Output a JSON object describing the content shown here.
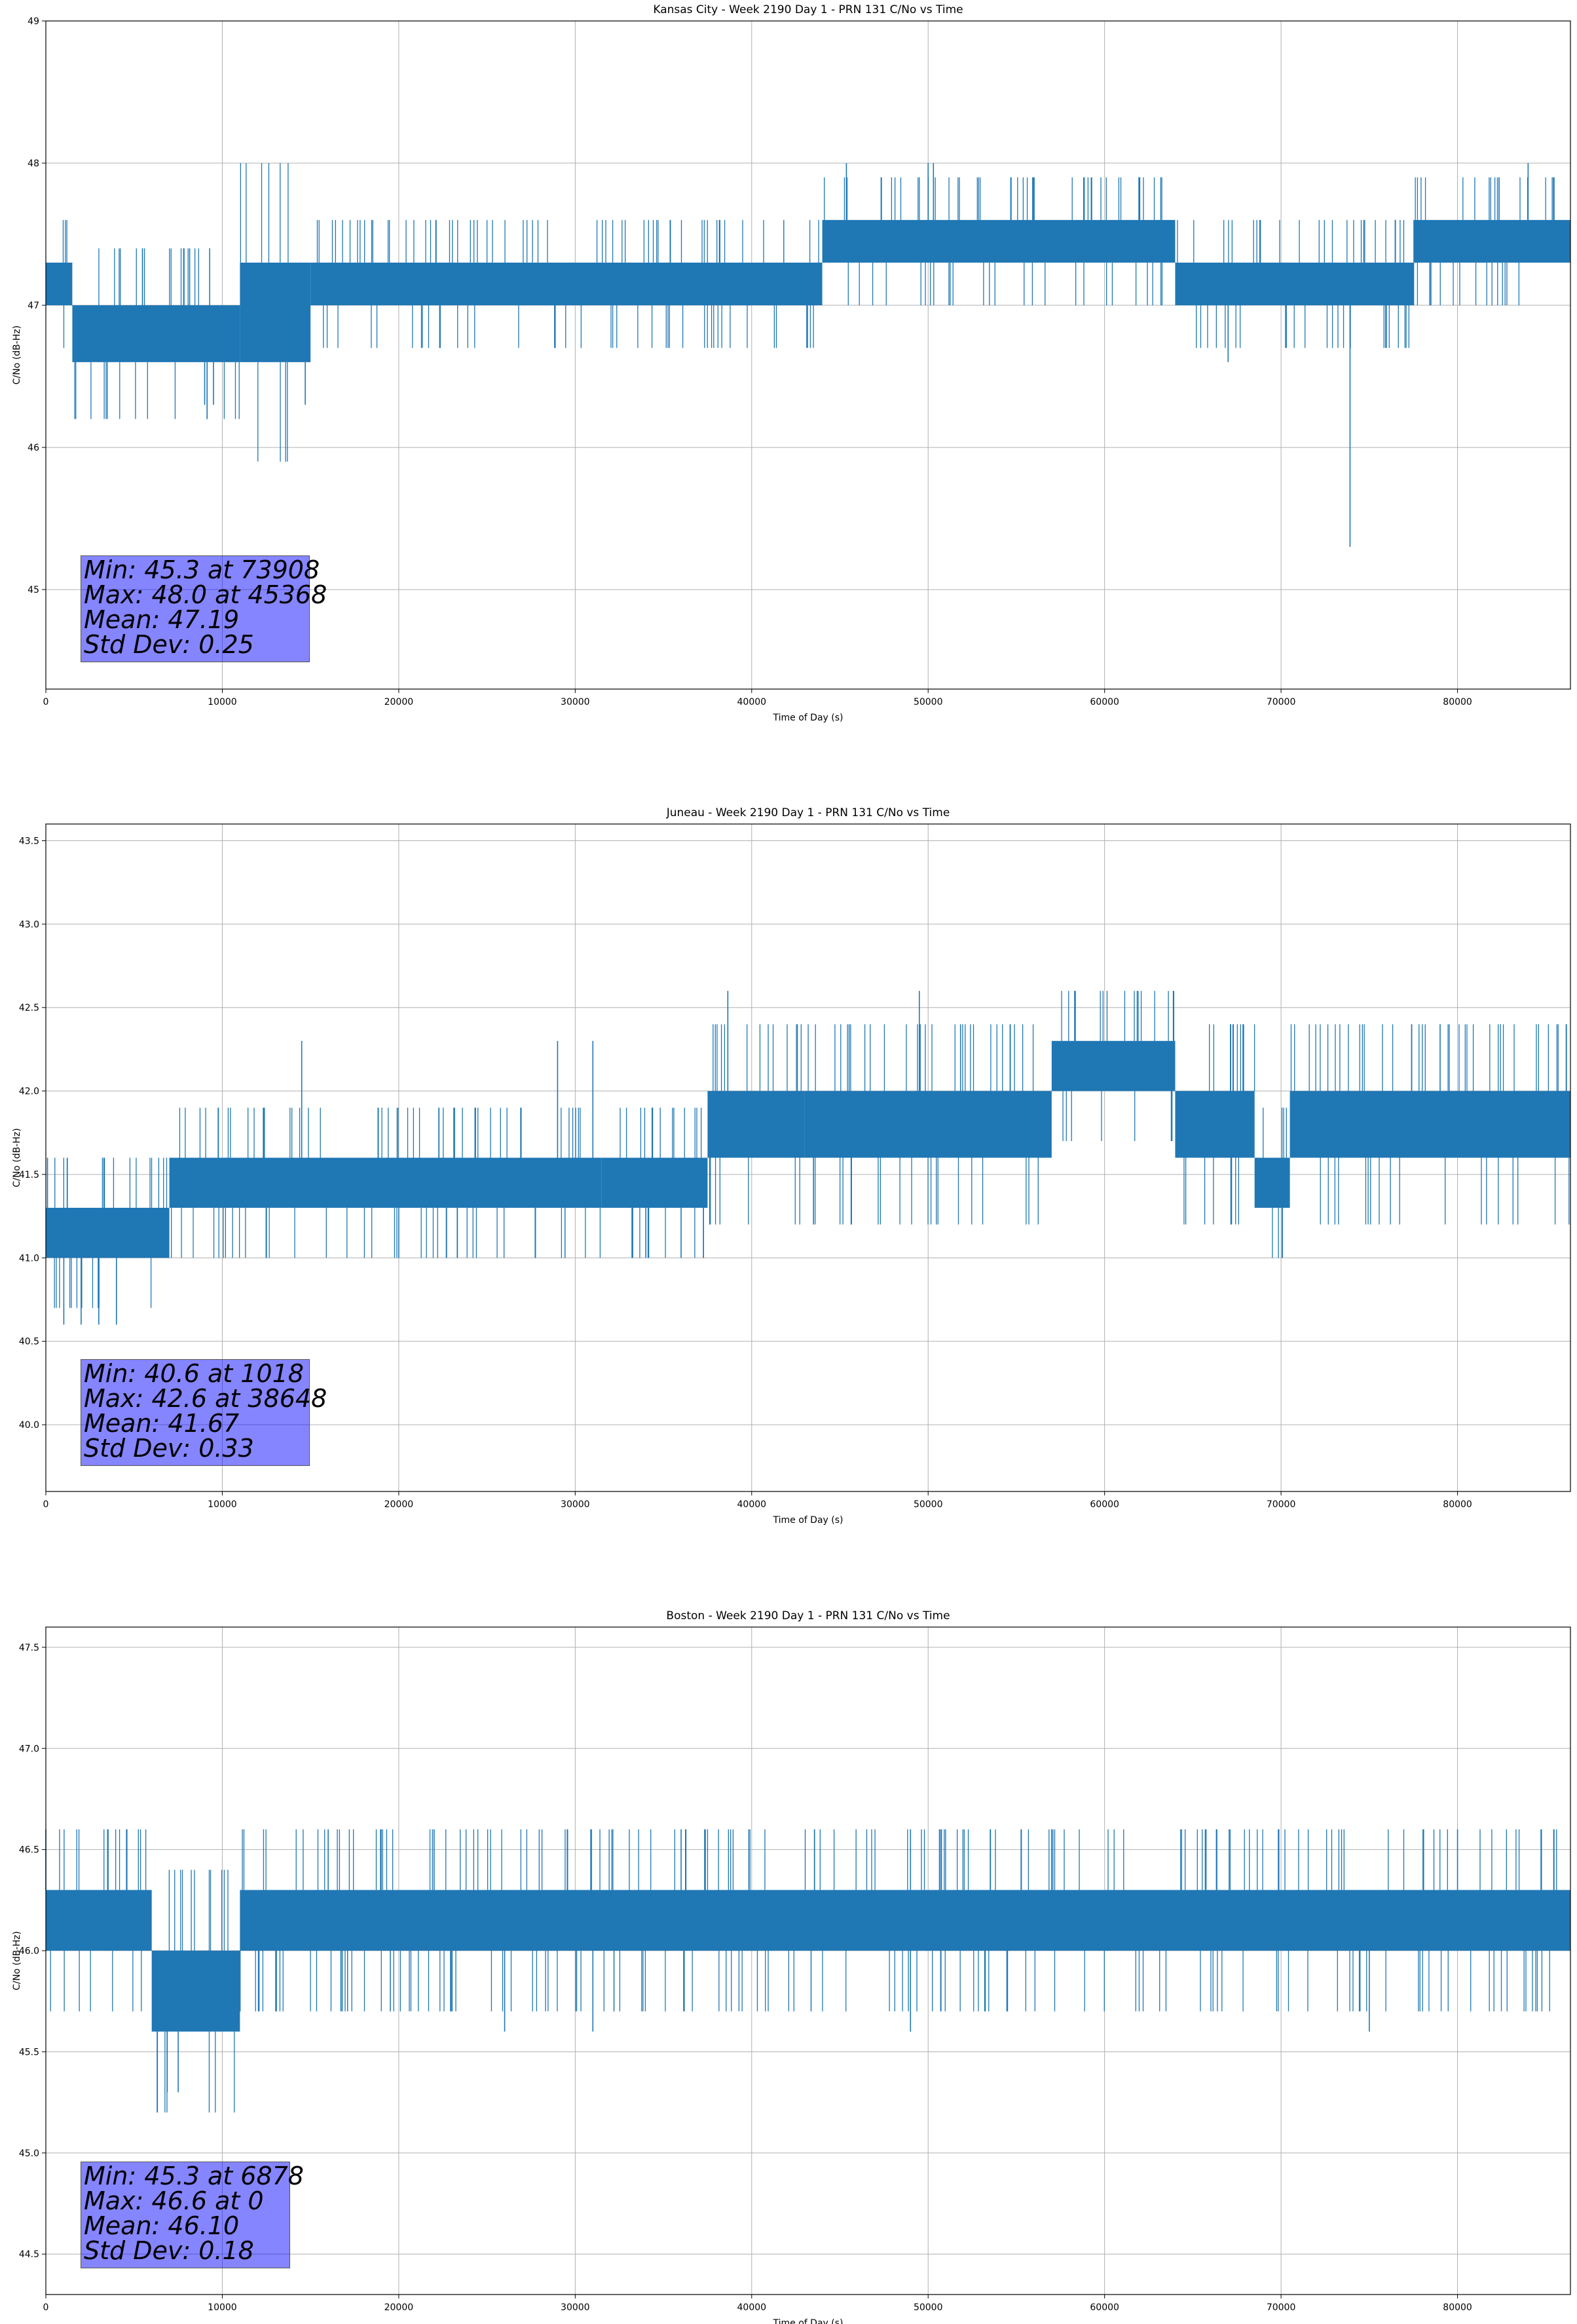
{
  "chart_data": [
    {
      "type": "line",
      "title": "Kansas City - Week 2190 Day 1 - PRN 131 C/No vs Time",
      "xlabel": "Time of Day (s)",
      "ylabel": "C/No (dB-Hz)",
      "xlim": [
        0,
        86400
      ],
      "ylim": [
        44.3,
        49.0
      ],
      "xticks": [
        0,
        10000,
        20000,
        30000,
        40000,
        50000,
        60000,
        70000,
        80000
      ],
      "yticks": [
        45,
        46,
        47,
        48,
        49
      ],
      "ytick_labels": [
        "45",
        "46",
        "47",
        "48",
        "49"
      ],
      "grid": true,
      "series_color": "#1f77b4",
      "bands": [
        {
          "x": [
            0,
            1500
          ],
          "low": 47.0,
          "high": 47.3
        },
        {
          "x": [
            1500,
            11000
          ],
          "low": 46.6,
          "high": 47.0
        },
        {
          "x": [
            11000,
            15000
          ],
          "low": 46.6,
          "high": 47.3
        },
        {
          "x": [
            15000,
            44000
          ],
          "low": 47.0,
          "high": 47.3
        },
        {
          "x": [
            44000,
            64000
          ],
          "low": 47.3,
          "high": 47.6
        },
        {
          "x": [
            64000,
            77500
          ],
          "low": 47.0,
          "high": 47.3
        },
        {
          "x": [
            77500,
            86400
          ],
          "low": 47.3,
          "high": 47.6
        }
      ],
      "spikes": [
        {
          "x": 9000,
          "y": 46.3
        },
        {
          "x": 9500,
          "y": 46.3
        },
        {
          "x": 14700,
          "y": 46.3
        },
        {
          "x": 45368,
          "y": 48.0
        },
        {
          "x": 50000,
          "y": 48.0
        },
        {
          "x": 50300,
          "y": 48.0
        },
        {
          "x": 67000,
          "y": 46.6
        },
        {
          "x": 73908,
          "y": 45.3
        },
        {
          "x": 84000,
          "y": 48.0
        }
      ],
      "stats": {
        "min": "Min: 45.3 at 73908",
        "max": "Max: 48.0 at 45368",
        "mean": "Mean: 47.19",
        "std": "Std Dev: 0.25"
      }
    },
    {
      "type": "line",
      "title": "Juneau - Week 2190 Day 1 - PRN 131 C/No vs Time",
      "xlabel": "Time of Day (s)",
      "ylabel": "C/No (dB-Hz)",
      "xlim": [
        0,
        86400
      ],
      "ylim": [
        39.6,
        43.6
      ],
      "xticks": [
        0,
        10000,
        20000,
        30000,
        40000,
        50000,
        60000,
        70000,
        80000
      ],
      "yticks": [
        40.0,
        40.5,
        41.0,
        41.5,
        42.0,
        42.5,
        43.0,
        43.5
      ],
      "ytick_labels": [
        "40.0",
        "40.5",
        "41.0",
        "41.5",
        "42.0",
        "42.5",
        "43.0",
        "43.5"
      ],
      "grid": true,
      "series_color": "#1f77b4",
      "bands": [
        {
          "x": [
            0,
            7000
          ],
          "low": 41.0,
          "high": 41.3
        },
        {
          "x": [
            7000,
            10000
          ],
          "low": 41.3,
          "high": 41.6
        },
        {
          "x": [
            10000,
            31500
          ],
          "low": 41.3,
          "high": 41.6
        },
        {
          "x": [
            31500,
            37500
          ],
          "low": 41.3,
          "high": 41.6
        },
        {
          "x": [
            37500,
            43000
          ],
          "low": 41.6,
          "high": 42.0
        },
        {
          "x": [
            43000,
            57000
          ],
          "low": 41.6,
          "high": 42.0
        },
        {
          "x": [
            57000,
            64000
          ],
          "low": 42.0,
          "high": 42.3
        },
        {
          "x": [
            64000,
            68500
          ],
          "low": 41.6,
          "high": 42.0
        },
        {
          "x": [
            68500,
            70500
          ],
          "low": 41.3,
          "high": 41.6
        },
        {
          "x": [
            70500,
            86400
          ],
          "low": 41.6,
          "high": 42.0
        }
      ],
      "spikes": [
        {
          "x": 1018,
          "y": 40.6
        },
        {
          "x": 2000,
          "y": 40.6
        },
        {
          "x": 3000,
          "y": 40.6
        },
        {
          "x": 4000,
          "y": 40.6
        },
        {
          "x": 38648,
          "y": 42.6
        },
        {
          "x": 49500,
          "y": 42.6
        },
        {
          "x": 14500,
          "y": 42.3
        },
        {
          "x": 29000,
          "y": 42.3
        },
        {
          "x": 31000,
          "y": 42.3
        },
        {
          "x": 34000,
          "y": 41.0
        },
        {
          "x": 36000,
          "y": 41.0
        },
        {
          "x": 20000,
          "y": 41.0
        }
      ],
      "stats": {
        "min": "Min: 40.6 at 1018",
        "max": "Max: 42.6 at 38648",
        "mean": "Mean: 41.67",
        "std": "Std Dev: 0.33"
      }
    },
    {
      "type": "line",
      "title": "Boston - Week 2190 Day 1 - PRN 131 C/No vs Time",
      "xlabel": "Time of Day (s)",
      "ylabel": "C/No (dB-Hz)",
      "xlim": [
        0,
        86400
      ],
      "ylim": [
        44.3,
        47.6
      ],
      "xticks": [
        0,
        10000,
        20000,
        30000,
        40000,
        50000,
        60000,
        70000,
        80000
      ],
      "yticks": [
        44.5,
        45.0,
        45.5,
        46.0,
        46.5,
        47.0,
        47.5
      ],
      "ytick_labels": [
        "44.5",
        "45.0",
        "45.5",
        "46.0",
        "46.5",
        "47.0",
        "47.5"
      ],
      "grid": true,
      "series_color": "#1f77b4",
      "bands": [
        {
          "x": [
            0,
            6000
          ],
          "low": 46.0,
          "high": 46.3
        },
        {
          "x": [
            6000,
            11000
          ],
          "low": 45.6,
          "high": 46.0
        },
        {
          "x": [
            11000,
            86400
          ],
          "low": 46.0,
          "high": 46.3
        }
      ],
      "spikes": [
        {
          "x": 0,
          "y": 46.6
        },
        {
          "x": 6878,
          "y": 45.3
        },
        {
          "x": 7500,
          "y": 45.3
        },
        {
          "x": 16000,
          "y": 46.6
        },
        {
          "x": 19000,
          "y": 46.6
        },
        {
          "x": 22000,
          "y": 46.6
        },
        {
          "x": 36000,
          "y": 46.6
        },
        {
          "x": 49000,
          "y": 46.6
        },
        {
          "x": 57000,
          "y": 46.6
        },
        {
          "x": 80000,
          "y": 46.6
        },
        {
          "x": 26000,
          "y": 45.6
        },
        {
          "x": 31000,
          "y": 45.6
        },
        {
          "x": 49000,
          "y": 45.6
        },
        {
          "x": 75000,
          "y": 45.6
        }
      ],
      "stats": {
        "min": "Min: 45.3 at 6878",
        "max": "Max: 46.6 at 0",
        "mean": "Mean: 46.10",
        "std": "Std Dev: 0.18"
      }
    }
  ]
}
